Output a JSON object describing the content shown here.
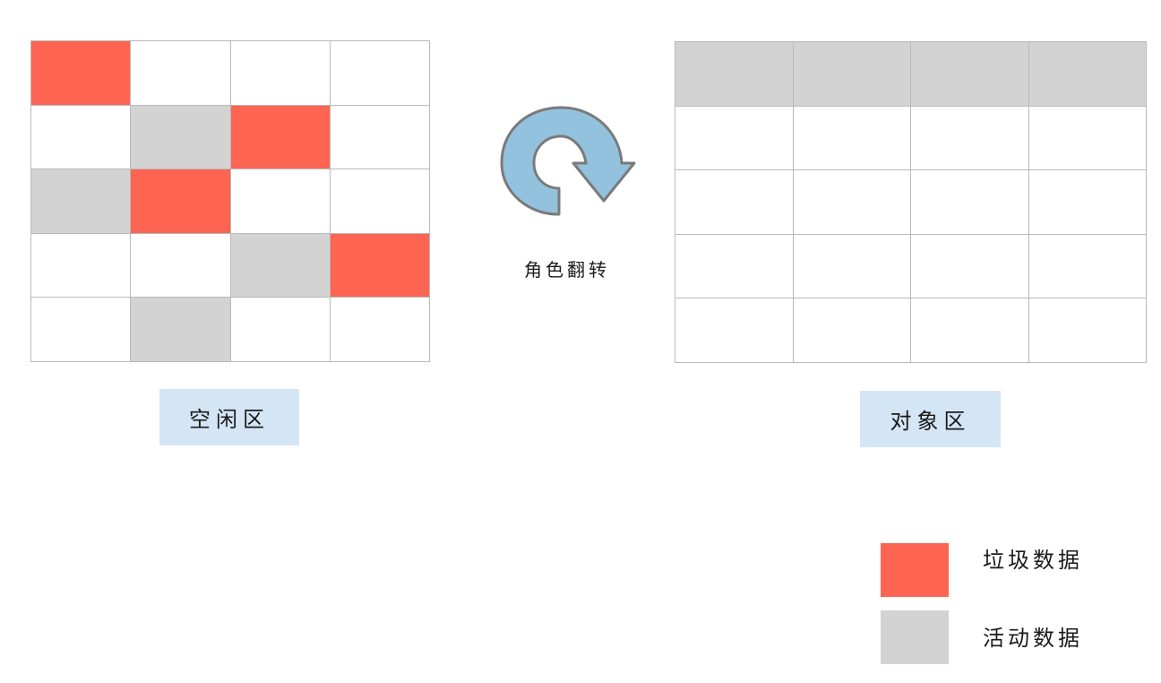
{
  "free_area": {
    "label": "空闲区",
    "rows": 5,
    "cols": 4,
    "cells": [
      [
        "garbage",
        "empty",
        "empty",
        "empty"
      ],
      [
        "empty",
        "active",
        "garbage",
        "empty"
      ],
      [
        "active",
        "garbage",
        "empty",
        "empty"
      ],
      [
        "empty",
        "empty",
        "active",
        "garbage"
      ],
      [
        "empty",
        "active",
        "empty",
        "empty"
      ]
    ]
  },
  "object_area": {
    "label": "对象区",
    "rows": 5,
    "cols": 4,
    "cells": [
      [
        "active",
        "active",
        "active",
        "active"
      ],
      [
        "empty",
        "empty",
        "empty",
        "empty"
      ],
      [
        "empty",
        "empty",
        "empty",
        "empty"
      ],
      [
        "empty",
        "empty",
        "empty",
        "empty"
      ],
      [
        "empty",
        "empty",
        "empty",
        "empty"
      ]
    ]
  },
  "role_flip": {
    "label": "角色翻转",
    "icon": "clockwise-arrow-icon",
    "color": "#93c2df"
  },
  "legend": {
    "garbage": {
      "label": "垃圾数据",
      "color": "#fe6452"
    },
    "active": {
      "label": "活动数据",
      "color": "#d3d3d3"
    }
  }
}
